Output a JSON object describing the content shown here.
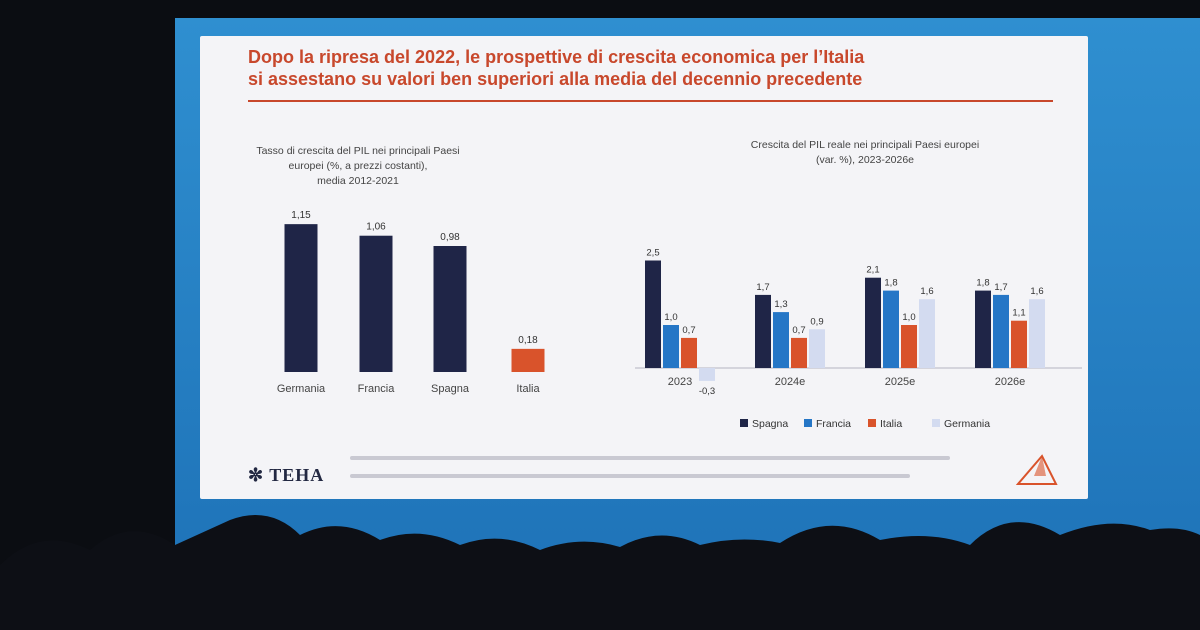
{
  "slide": {
    "title_line1": "Dopo la ripresa del 2022, le prospettive di crescita economica per l’Italia",
    "title_line2": "si assestano su valori ben superiori alla media del decennio precedente",
    "brand": "TEHA"
  },
  "chart_data": [
    {
      "type": "bar",
      "title": "Tasso di crescita del PIL nei principali Paesi europei (%, a prezzi costanti), media 2012-2021",
      "title_lines": [
        "Tasso di crescita del PIL nei principali Paesi",
        "europei (%, a prezzi costanti),",
        "media 2012-2021"
      ],
      "categories": [
        "Germania",
        "Francia",
        "Spagna",
        "Italia"
      ],
      "values": [
        1.15,
        1.06,
        0.98,
        0.18
      ],
      "value_labels": [
        "1,15",
        "1,06",
        "0,98",
        "0,18"
      ],
      "colors": [
        "#1f2547",
        "#1f2547",
        "#1f2547",
        "#d9532b"
      ],
      "ylim": [
        0,
        1.4
      ]
    },
    {
      "type": "bar",
      "title": "Crescita del PIL reale nei principali Paesi europei (var. %), 2023-2026e",
      "title_lines": [
        "Crescita del PIL reale nei principali Paesi europei",
        "(var. %), 2023-2026e"
      ],
      "categories": [
        "2023",
        "2024e",
        "2025e",
        "2026e"
      ],
      "series": [
        {
          "name": "Spagna",
          "color": "#1f2547",
          "values": [
            2.5,
            1.7,
            2.1,
            1.8
          ],
          "labels": [
            "2,5",
            "1,7",
            "2,1",
            "1,8"
          ]
        },
        {
          "name": "Francia",
          "color": "#2576c6",
          "values": [
            1.0,
            1.3,
            1.8,
            1.7
          ],
          "labels": [
            "1,0",
            "1,3",
            "1,8",
            "1,7"
          ]
        },
        {
          "name": "Italia",
          "color": "#d9532b",
          "values": [
            0.7,
            0.7,
            1.0,
            1.1
          ],
          "labels": [
            "0,7",
            "0,7",
            "1,0",
            "1,1"
          ]
        },
        {
          "name": "Germania",
          "color": "#d3dbf0",
          "values": [
            -0.3,
            0.9,
            1.6,
            1.6
          ],
          "labels": [
            "-0,3",
            "0,9",
            "1,6",
            "1,6"
          ]
        }
      ],
      "ylim": [
        -0.5,
        2.8
      ]
    }
  ]
}
